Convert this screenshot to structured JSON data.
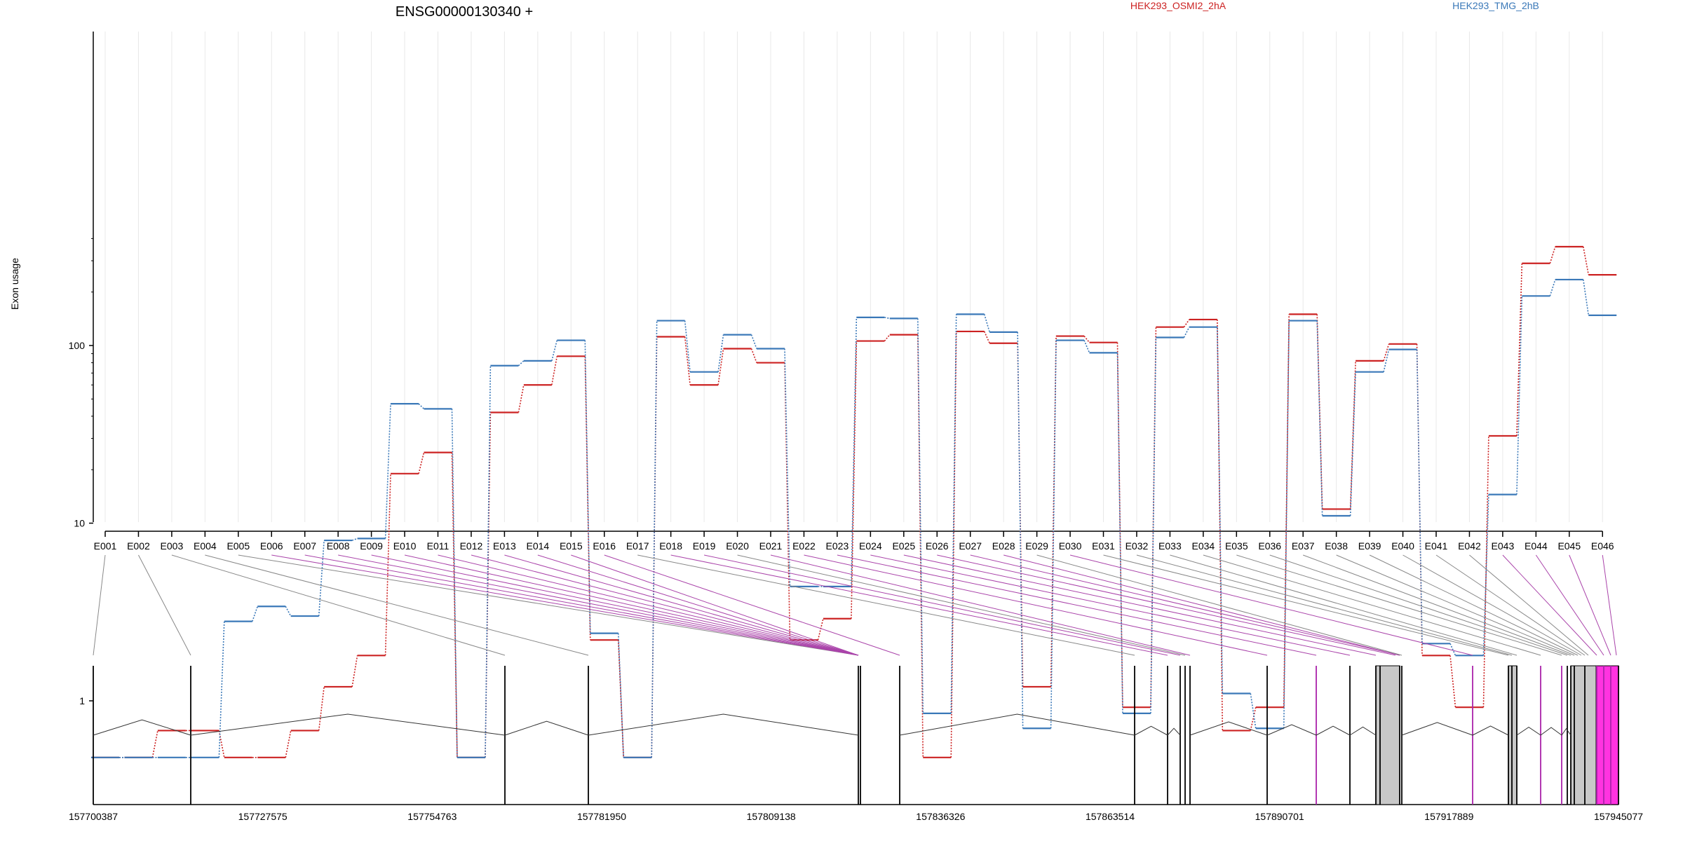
{
  "chart_data": {
    "type": "line",
    "title": "ENSG00000130340 +",
    "ylabel": "Exon usage",
    "y_scale": "log",
    "ylim": [
      0.48,
      500
    ],
    "y_ticks": [
      1,
      10,
      100
    ],
    "y_tick_labels": [
      "1",
      "10",
      "100"
    ],
    "grid": "vertical",
    "legend_position": "top",
    "categories": [
      "E001",
      "E002",
      "E003",
      "E004",
      "E005",
      "E006",
      "E007",
      "E008",
      "E009",
      "E010",
      "E011",
      "E012",
      "E013",
      "E014",
      "E015",
      "E016",
      "E017",
      "E018",
      "E019",
      "E020",
      "E021",
      "E022",
      "E023",
      "E024",
      "E025",
      "E026",
      "E027",
      "E028",
      "E029",
      "E030",
      "E031",
      "E032",
      "E033",
      "E034",
      "E035",
      "E036",
      "E037",
      "E038",
      "E039",
      "E040",
      "E041",
      "E042",
      "E043",
      "E044",
      "E045",
      "E046"
    ],
    "series": [
      {
        "name": "HEK293_OSMI2_2hA",
        "color": "#cc2222",
        "values": [
          0.48,
          0.48,
          0.68,
          0.68,
          0.48,
          0.48,
          0.68,
          1.2,
          1.8,
          19,
          25,
          0.48,
          42,
          60,
          87,
          2.2,
          0.48,
          112,
          60,
          96,
          80,
          2.2,
          2.9,
          106,
          115,
          0.48,
          120,
          103,
          1.2,
          113,
          104,
          0.92,
          127,
          140,
          0.68,
          0.92,
          150,
          12,
          82,
          102,
          1.8,
          0.92,
          31,
          290,
          360,
          250
        ]
      },
      {
        "name": "HEK293_TMG_2hB",
        "color": "#3a78b8",
        "values": [
          0.48,
          0.48,
          0.48,
          0.48,
          2.8,
          3.4,
          3.0,
          8.0,
          8.2,
          47,
          44,
          0.48,
          77,
          82,
          107,
          2.4,
          0.48,
          138,
          71,
          115,
          96,
          4.4,
          4.4,
          144,
          142,
          0.85,
          150,
          119,
          0.7,
          107,
          91,
          0.85,
          111,
          127,
          1.1,
          0.7,
          138,
          11,
          71,
          95,
          2.1,
          1.8,
          14.5,
          190,
          235,
          148
        ]
      }
    ],
    "genomic_axis": {
      "labels": [
        "157700387",
        "157727575",
        "157754763",
        "157781950",
        "157809138",
        "157836326",
        "157863514",
        "157890701",
        "157917889",
        "157945077"
      ]
    }
  }
}
